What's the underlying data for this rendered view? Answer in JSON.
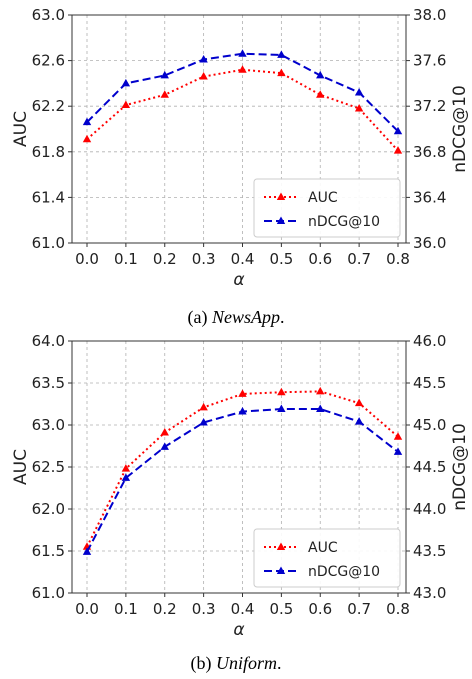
{
  "chart_data": [
    {
      "type": "line",
      "caption_prefix": "(a)",
      "caption_name": "NewsApp",
      "caption_suffix": ".",
      "x": [
        0.0,
        0.1,
        0.2,
        0.3,
        0.4,
        0.5,
        0.6,
        0.7,
        0.8
      ],
      "x_tick_labels": [
        "0.0",
        "0.1",
        "0.2",
        "0.3",
        "0.4",
        "0.5",
        "0.6",
        "0.7",
        "0.8"
      ],
      "xlabel": "α",
      "ylabel_left": "AUC",
      "ylabel_right": "nDCG@10",
      "ylim_left": [
        61.0,
        63.0
      ],
      "ylim_right": [
        36.0,
        38.0
      ],
      "y_ticks_left": [
        "61.0",
        "61.4",
        "61.8",
        "62.2",
        "62.6",
        "63.0"
      ],
      "y_ticks_right": [
        "36.0",
        "36.4",
        "36.8",
        "37.2",
        "37.6",
        "38.0"
      ],
      "grid": true,
      "legend_position": "bottom-right",
      "series": [
        {
          "name": "AUC",
          "axis": "left",
          "color": "#ff0000",
          "style": "dotted",
          "marker": "triangle",
          "values": [
            61.91,
            62.21,
            62.3,
            62.46,
            62.52,
            62.49,
            62.3,
            62.18,
            61.81
          ]
        },
        {
          "name": "nDCG@10",
          "axis": "right",
          "color": "#0000cc",
          "style": "dashed",
          "marker": "triangle",
          "values": [
            37.06,
            37.4,
            37.47,
            37.61,
            37.66,
            37.65,
            37.47,
            37.32,
            36.98
          ]
        }
      ]
    },
    {
      "type": "line",
      "caption_prefix": "(b)",
      "caption_name": "Uniform",
      "caption_suffix": ".",
      "x": [
        0.0,
        0.1,
        0.2,
        0.3,
        0.4,
        0.5,
        0.6,
        0.7,
        0.8
      ],
      "x_tick_labels": [
        "0.0",
        "0.1",
        "0.2",
        "0.3",
        "0.4",
        "0.5",
        "0.6",
        "0.7",
        "0.8"
      ],
      "xlabel": "α",
      "ylabel_left": "AUC",
      "ylabel_right": "nDCG@10",
      "ylim_left": [
        61.0,
        64.0
      ],
      "ylim_right": [
        43.0,
        46.0
      ],
      "y_ticks_left": [
        "61.0",
        "61.5",
        "62.0",
        "62.5",
        "63.0",
        "63.5",
        "64.0"
      ],
      "y_ticks_right": [
        "43.0",
        "43.5",
        "44.0",
        "44.5",
        "45.0",
        "45.5",
        "46.0"
      ],
      "grid": true,
      "legend_position": "bottom-right",
      "series": [
        {
          "name": "AUC",
          "axis": "left",
          "color": "#ff0000",
          "style": "dotted",
          "marker": "triangle",
          "values": [
            61.55,
            62.48,
            62.91,
            63.21,
            63.37,
            63.39,
            63.4,
            63.26,
            62.86
          ]
        },
        {
          "name": "nDCG@10",
          "axis": "right",
          "color": "#0000cc",
          "style": "dashed",
          "marker": "triangle",
          "values": [
            43.49,
            44.37,
            44.74,
            45.03,
            45.16,
            45.19,
            45.19,
            45.04,
            44.68
          ]
        }
      ]
    }
  ]
}
